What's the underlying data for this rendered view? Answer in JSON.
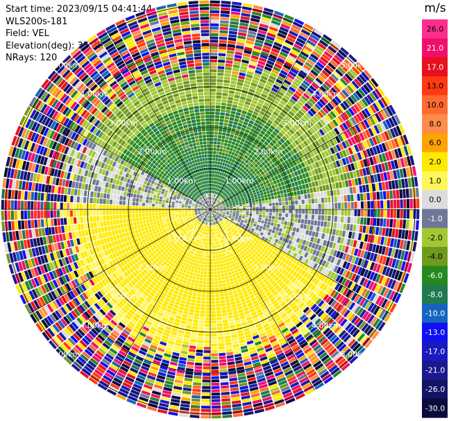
{
  "info": {
    "start_time": "Start time: 2023/09/15 04:41:44",
    "site": "WLS200s-181",
    "field": "Field: VEL",
    "elevation": "Elevation(deg): 35.30",
    "nrays": "NRays: 120"
  },
  "colorbar": {
    "unit": "m/s",
    "levels": [
      "26.0",
      "21.0",
      "17.0",
      "13.0",
      "10.0",
      "8.0",
      "6.0",
      "2.0",
      "1.0",
      "0.0",
      "-1.0",
      "-2.0",
      "-4.0",
      "-6.0",
      "-8.0",
      "-10.0",
      "-13.0",
      "-17.0",
      "-21.0",
      "-26.0",
      "-30.0"
    ],
    "colors": [
      "#ff2e8c",
      "#f0106a",
      "#e8101e",
      "#ff3a10",
      "#ff6a30",
      "#ff8c4a",
      "#ffa300",
      "#ffe900",
      "#fff65a",
      "#dcdcdc",
      "#6e7896",
      "#a2c832",
      "#6e9a1e",
      "#26891e",
      "#1f7a4f",
      "#1565c0",
      "#1010f0",
      "#1a1ac0",
      "#1a1a8c",
      "#141466",
      "#0a0a3c"
    ]
  },
  "chart_data": {
    "type": "heatmap",
    "projection": "polar PPI",
    "nrays": 120,
    "range_rings_km": [
      1.0,
      2.0,
      3.0,
      4.0,
      5.0
    ],
    "ring_labels": [
      "1.00km",
      "2.00km",
      "3.00km",
      "4.00km",
      "5.00km"
    ],
    "max_range_km": 5.1,
    "colorbar_range": [
      -30.0,
      26.0
    ],
    "patterns": {
      "north_sector_az": [
        300,
        80
      ],
      "north_sector_value": -5,
      "south_sector_az": [
        120,
        270
      ],
      "south_sector_value": 4,
      "noise_beyond_km": 3.5
    }
  }
}
